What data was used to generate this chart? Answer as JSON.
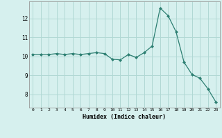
{
  "x": [
    0,
    1,
    2,
    3,
    4,
    5,
    6,
    7,
    8,
    9,
    10,
    11,
    12,
    13,
    14,
    15,
    16,
    17,
    18,
    19,
    20,
    21,
    22,
    23
  ],
  "y": [
    10.1,
    10.1,
    10.1,
    10.15,
    10.1,
    10.15,
    10.1,
    10.15,
    10.2,
    10.15,
    9.85,
    9.82,
    10.1,
    9.95,
    10.2,
    10.55,
    12.55,
    12.15,
    11.3,
    9.7,
    9.05,
    8.85,
    8.3,
    7.6
  ],
  "line_color": "#2d7f72",
  "marker": "D",
  "marker_size": 2.0,
  "bg_color": "#d6f0ee",
  "grid_color": "#b0d8d4",
  "xlabel": "Humidex (Indice chaleur)",
  "ylabel_ticks": [
    8,
    9,
    10,
    11,
    12
  ],
  "xlim": [
    -0.5,
    23.5
  ],
  "ylim": [
    7.3,
    12.9
  ]
}
